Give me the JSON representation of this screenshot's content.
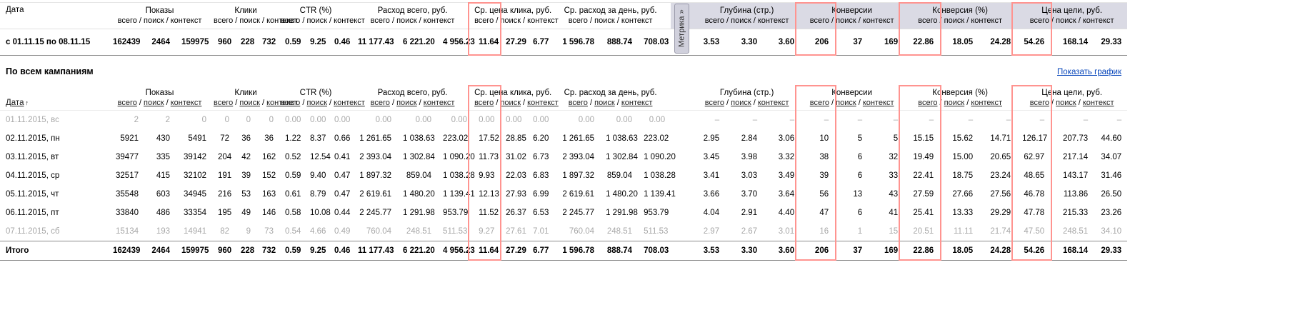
{
  "colors": {
    "highlight_border": "#ff9490",
    "header_band": "#dadae4",
    "chart_link_blue": "#0b48bb",
    "muted_text": "#a8a8a8"
  },
  "metrika_tab_label": "Метрика »",
  "subcolumns": [
    "всего",
    "поиск",
    "контекст"
  ],
  "column_groups": [
    {
      "label": "Показы"
    },
    {
      "label": "Клики"
    },
    {
      "label": "CTR (%)"
    },
    {
      "label": "Расход всего, руб."
    },
    {
      "label": "Ср. цена клика, руб."
    },
    {
      "label": "Ср. расход за день, руб."
    },
    {
      "label": "Глубина (стр.)"
    },
    {
      "label": "Конверсии"
    },
    {
      "label": "Конверсия (%)"
    },
    {
      "label": "Цена цели, руб."
    }
  ],
  "summary": {
    "date_header": "Дата",
    "period": "с 01.11.15 по 08.11.15",
    "values": [
      "162439",
      "2464",
      "159975",
      "960",
      "228",
      "732",
      "0.59",
      "9.25",
      "0.46",
      "11 177.43",
      "6 221.20",
      "4 956.23",
      "11.64",
      "27.29",
      "6.77",
      "1 596.78",
      "888.74",
      "708.03",
      "3.53",
      "3.30",
      "3.60",
      "206",
      "37",
      "169",
      "22.86",
      "18.05",
      "24.28",
      "54.26",
      "168.14",
      "29.33"
    ]
  },
  "section": {
    "title": "По всем кампаниям",
    "show_chart_link": "Показать график"
  },
  "detail": {
    "date_header": "Дата",
    "sort_arrow": "↑",
    "rows": [
      {
        "date": "01.11.2015, вс",
        "muted": true,
        "values": [
          "2",
          "2",
          "0",
          "0",
          "0",
          "0",
          "0.00",
          "0.00",
          "0.00",
          "0.00",
          "0.00",
          "0.00",
          "0.00",
          "0.00",
          "0.00",
          "0.00",
          "0.00",
          "0.00",
          "–",
          "–",
          "–",
          "–",
          "–",
          "–",
          "–",
          "–",
          "–",
          "–",
          "–",
          "–"
        ]
      },
      {
        "date": "02.11.2015, пн",
        "muted": false,
        "values": [
          "5921",
          "430",
          "5491",
          "72",
          "36",
          "36",
          "1.22",
          "8.37",
          "0.66",
          "1 261.65",
          "1 038.63",
          "223.02",
          "17.52",
          "28.85",
          "6.20",
          "1 261.65",
          "1 038.63",
          "223.02",
          "2.95",
          "2.84",
          "3.06",
          "10",
          "5",
          "5",
          "15.15",
          "15.62",
          "14.71",
          "126.17",
          "207.73",
          "44.60"
        ]
      },
      {
        "date": "03.11.2015, вт",
        "muted": false,
        "values": [
          "39477",
          "335",
          "39142",
          "204",
          "42",
          "162",
          "0.52",
          "12.54",
          "0.41",
          "2 393.04",
          "1 302.84",
          "1 090.20",
          "11.73",
          "31.02",
          "6.73",
          "2 393.04",
          "1 302.84",
          "1 090.20",
          "3.45",
          "3.98",
          "3.32",
          "38",
          "6",
          "32",
          "19.49",
          "15.00",
          "20.65",
          "62.97",
          "217.14",
          "34.07"
        ]
      },
      {
        "date": "04.11.2015, ср",
        "muted": false,
        "values": [
          "32517",
          "415",
          "32102",
          "191",
          "39",
          "152",
          "0.59",
          "9.40",
          "0.47",
          "1 897.32",
          "859.04",
          "1 038.28",
          "9.93",
          "22.03",
          "6.83",
          "1 897.32",
          "859.04",
          "1 038.28",
          "3.41",
          "3.03",
          "3.49",
          "39",
          "6",
          "33",
          "22.41",
          "18.75",
          "23.24",
          "48.65",
          "143.17",
          "31.46"
        ]
      },
      {
        "date": "05.11.2015, чт",
        "muted": false,
        "values": [
          "35548",
          "603",
          "34945",
          "216",
          "53",
          "163",
          "0.61",
          "8.79",
          "0.47",
          "2 619.61",
          "1 480.20",
          "1 139.41",
          "12.13",
          "27.93",
          "6.99",
          "2 619.61",
          "1 480.20",
          "1 139.41",
          "3.66",
          "3.70",
          "3.64",
          "56",
          "13",
          "43",
          "27.59",
          "27.66",
          "27.56",
          "46.78",
          "113.86",
          "26.50"
        ]
      },
      {
        "date": "06.11.2015, пт",
        "muted": false,
        "values": [
          "33840",
          "486",
          "33354",
          "195",
          "49",
          "146",
          "0.58",
          "10.08",
          "0.44",
          "2 245.77",
          "1 291.98",
          "953.79",
          "11.52",
          "26.37",
          "6.53",
          "2 245.77",
          "1 291.98",
          "953.79",
          "4.04",
          "2.91",
          "4.40",
          "47",
          "6",
          "41",
          "25.41",
          "13.33",
          "29.29",
          "47.78",
          "215.33",
          "23.26"
        ]
      },
      {
        "date": "07.11.2015, сб",
        "muted": true,
        "values": [
          "15134",
          "193",
          "14941",
          "82",
          "9",
          "73",
          "0.54",
          "4.66",
          "0.49",
          "760.04",
          "248.51",
          "511.53",
          "9.27",
          "27.61",
          "7.01",
          "760.04",
          "248.51",
          "511.53",
          "2.97",
          "2.67",
          "3.01",
          "16",
          "1",
          "15",
          "20.51",
          "11.11",
          "21.74",
          "47.50",
          "248.51",
          "34.10"
        ]
      }
    ],
    "total": {
      "label": "Итого",
      "values": [
        "162439",
        "2464",
        "159975",
        "960",
        "228",
        "732",
        "0.59",
        "9.25",
        "0.46",
        "11 177.43",
        "6 221.20",
        "4 956.23",
        "11.64",
        "27.29",
        "6.77",
        "1 596.78",
        "888.74",
        "708.03",
        "3.53",
        "3.30",
        "3.60",
        "206",
        "37",
        "169",
        "22.86",
        "18.05",
        "24.28",
        "54.26",
        "168.14",
        "29.33"
      ]
    }
  }
}
